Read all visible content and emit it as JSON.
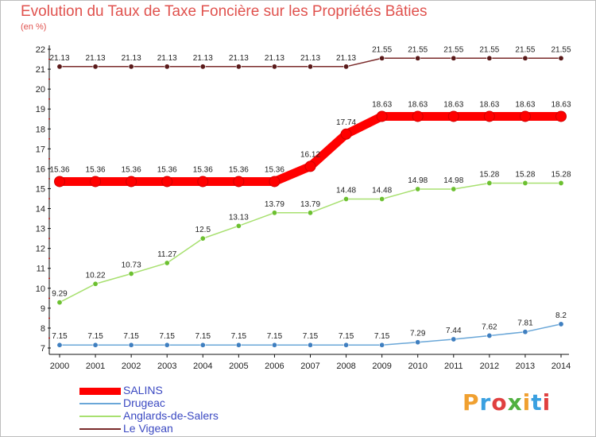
{
  "title": "Evolution du Taux de Taxe Foncière sur les Propriétés Bâties",
  "unit_label": "(en %)",
  "logo_text": "Proxiti",
  "logo_colors": [
    "#f0a030",
    "#3aa0e0",
    "#e04040",
    "#50b040",
    "#f0a030",
    "#3aa0e0",
    "#e04040"
  ],
  "chart_data": {
    "type": "line",
    "title": "Evolution du Taux de Taxe Foncière sur les Propriétés Bâties",
    "ylabel": "(en %)",
    "xlabel": "",
    "x": [
      "2000",
      "2001",
      "2002",
      "2003",
      "2004",
      "2005",
      "2006",
      "2007",
      "2008",
      "2009",
      "2010",
      "2011",
      "2012",
      "2013",
      "2014"
    ],
    "ylim": [
      7,
      22
    ],
    "yticks": [
      "7",
      "8",
      "9",
      "10",
      "11",
      "12",
      "13",
      "14",
      "15",
      "16",
      "17",
      "18",
      "19",
      "20",
      "21",
      "22"
    ],
    "grid": false,
    "legend_position": "bottom-left",
    "series": [
      {
        "name": "SALINS",
        "color": "#ff0000",
        "emphasis": "thick",
        "values": [
          15.36,
          15.36,
          15.36,
          15.36,
          15.36,
          15.36,
          15.36,
          16.12,
          17.74,
          18.63,
          18.63,
          18.63,
          18.63,
          18.63,
          18.63
        ],
        "labels": [
          "15.36",
          "15.36",
          "15.36",
          "15.36",
          "15.36",
          "15.36",
          "15.36",
          "16.12",
          "17.74",
          "18.63",
          "18.63",
          "18.63",
          "18.63",
          "18.63",
          "18.63"
        ]
      },
      {
        "name": "Drugeac",
        "color": "#6aa7d8",
        "marker_color": "#3f7fc0",
        "emphasis": "thin",
        "values": [
          7.15,
          7.15,
          7.15,
          7.15,
          7.15,
          7.15,
          7.15,
          7.15,
          7.15,
          7.15,
          7.29,
          7.44,
          7.62,
          7.81,
          8.2
        ],
        "labels": [
          "7.15",
          "7.15",
          "7.15",
          "7.15",
          "7.15",
          "7.15",
          "7.15",
          "7.15",
          "7.15",
          "7.15",
          "7.29",
          "7.44",
          "7.62",
          "7.81",
          "8.2"
        ]
      },
      {
        "name": "Anglards-de-Salers",
        "color": "#a8e070",
        "marker_color": "#6cc030",
        "emphasis": "thin",
        "values": [
          9.29,
          10.22,
          10.73,
          11.27,
          12.5,
          13.13,
          13.79,
          13.79,
          14.48,
          14.48,
          14.98,
          14.98,
          15.28,
          15.28,
          15.28
        ],
        "labels": [
          "9.29",
          "10.22",
          "10.73",
          "11.27",
          "12.5",
          "13.13",
          "13.79",
          "13.79",
          "14.48",
          "14.48",
          "14.98",
          "14.98",
          "15.28",
          "15.28",
          "15.28"
        ]
      },
      {
        "name": "Le Vigean",
        "color": "#7a2a2a",
        "marker_color": "#5a1a1a",
        "emphasis": "thin",
        "values": [
          21.13,
          21.13,
          21.13,
          21.13,
          21.13,
          21.13,
          21.13,
          21.13,
          21.13,
          21.55,
          21.55,
          21.55,
          21.55,
          21.55,
          21.55
        ],
        "labels": [
          "21.13",
          "21.13",
          "21.13",
          "21.13",
          "21.13",
          "21.13",
          "21.13",
          "21.13",
          "21.13",
          "21.55",
          "21.55",
          "21.55",
          "21.55",
          "21.55",
          "21.55"
        ]
      }
    ]
  }
}
